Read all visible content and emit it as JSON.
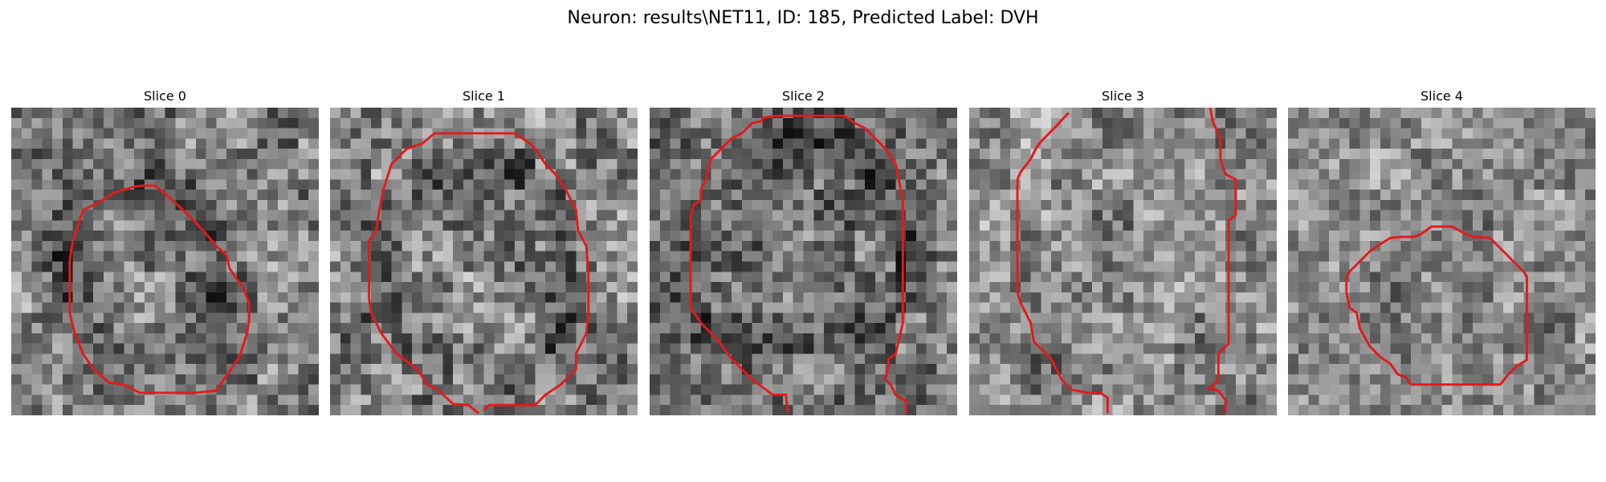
{
  "figure": {
    "title": "Neuron: results\\NET11, ID: 185, Predicted Label: DVH"
  },
  "panels": [
    {
      "title": "Slice 0"
    },
    {
      "title": "Slice 1"
    },
    {
      "title": "Slice 2"
    },
    {
      "title": "Slice 3"
    },
    {
      "title": "Slice 4"
    }
  ],
  "colors": {
    "contour": "#e31a1c",
    "image_colormap": "gray"
  }
}
